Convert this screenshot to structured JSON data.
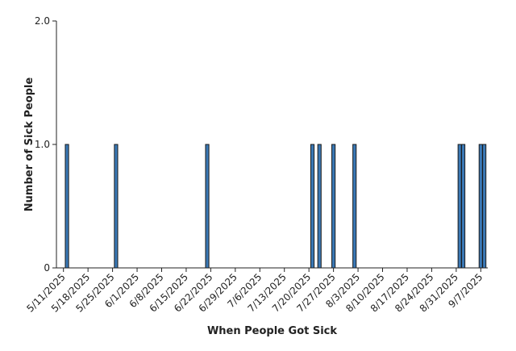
{
  "chart_data": {
    "type": "bar",
    "xlabel": "When People Got Sick",
    "ylabel": "Number of Sick People",
    "x_range": [
      "2025-05-09",
      "2025-09-09"
    ],
    "ylim": [
      0,
      2
    ],
    "y_ticks": [
      {
        "value": 0,
        "label": "0"
      },
      {
        "value": 1,
        "label": "1.0"
      },
      {
        "value": 2,
        "label": "2.0"
      }
    ],
    "x_ticks": [
      {
        "date": "2025-05-11",
        "label": "5/11/2025"
      },
      {
        "date": "2025-05-18",
        "label": "5/18/2025"
      },
      {
        "date": "2025-05-25",
        "label": "5/25/2025"
      },
      {
        "date": "2025-06-01",
        "label": "6/1/2025"
      },
      {
        "date": "2025-06-08",
        "label": "6/8/2025"
      },
      {
        "date": "2025-06-15",
        "label": "6/15/2025"
      },
      {
        "date": "2025-06-22",
        "label": "6/22/2025"
      },
      {
        "date": "2025-06-29",
        "label": "6/29/2025"
      },
      {
        "date": "2025-07-06",
        "label": "7/6/2025"
      },
      {
        "date": "2025-07-13",
        "label": "7/13/2025"
      },
      {
        "date": "2025-07-20",
        "label": "7/20/2025"
      },
      {
        "date": "2025-07-27",
        "label": "7/27/2025"
      },
      {
        "date": "2025-08-03",
        "label": "8/3/2025"
      },
      {
        "date": "2025-08-10",
        "label": "8/10/2025"
      },
      {
        "date": "2025-08-17",
        "label": "8/17/2025"
      },
      {
        "date": "2025-08-24",
        "label": "8/24/2025"
      },
      {
        "date": "2025-08-31",
        "label": "8/31/2025"
      },
      {
        "date": "2025-09-07",
        "label": "9/7/2025"
      }
    ],
    "bars": [
      {
        "date": "2025-05-12",
        "value": 1
      },
      {
        "date": "2025-05-26",
        "value": 1
      },
      {
        "date": "2025-06-21",
        "value": 1
      },
      {
        "date": "2025-07-21",
        "value": 1
      },
      {
        "date": "2025-07-23",
        "value": 1
      },
      {
        "date": "2025-07-27",
        "value": 1
      },
      {
        "date": "2025-08-02",
        "value": 1
      },
      {
        "date": "2025-09-01",
        "value": 1
      },
      {
        "date": "2025-09-02",
        "value": 1
      },
      {
        "date": "2025-09-07",
        "value": 1
      },
      {
        "date": "2025-09-08",
        "value": 1
      }
    ],
    "bar_color": "#3a78b5",
    "grid": false
  }
}
